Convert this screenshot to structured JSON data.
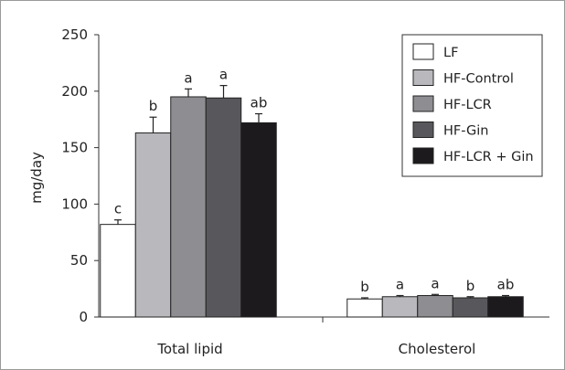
{
  "chart_data": {
    "type": "bar",
    "categories": [
      "Total lipid",
      "Cholesterol"
    ],
    "ylabel": "mg/day",
    "xlabel": "",
    "ylim": [
      0,
      250
    ],
    "yticks": [
      0,
      50,
      100,
      150,
      200,
      250
    ],
    "grid": false,
    "legend_position": "top-right",
    "series": [
      {
        "name": "LF",
        "color": "#ffffff",
        "values": [
          82,
          16
        ],
        "errors": [
          4,
          1
        ],
        "labels": [
          "c",
          "b"
        ]
      },
      {
        "name": "HF-Control",
        "color": "#b9b9bd",
        "values": [
          163,
          18
        ],
        "errors": [
          14,
          1
        ],
        "labels": [
          "b",
          "a"
        ]
      },
      {
        "name": "HF-LCR",
        "color": "#8e8e92",
        "values": [
          195,
          19
        ],
        "errors": [
          7,
          1
        ],
        "labels": [
          "a",
          "a"
        ]
      },
      {
        "name": "HF-Gin",
        "color": "#58585c",
        "values": [
          194,
          17
        ],
        "errors": [
          11,
          1
        ],
        "labels": [
          "a",
          "b"
        ]
      },
      {
        "name": "HF-LCR + Gin",
        "color": "#1c1a1c",
        "values": [
          172,
          18
        ],
        "errors": [
          8,
          1
        ],
        "labels": [
          "ab",
          "ab"
        ]
      }
    ]
  }
}
